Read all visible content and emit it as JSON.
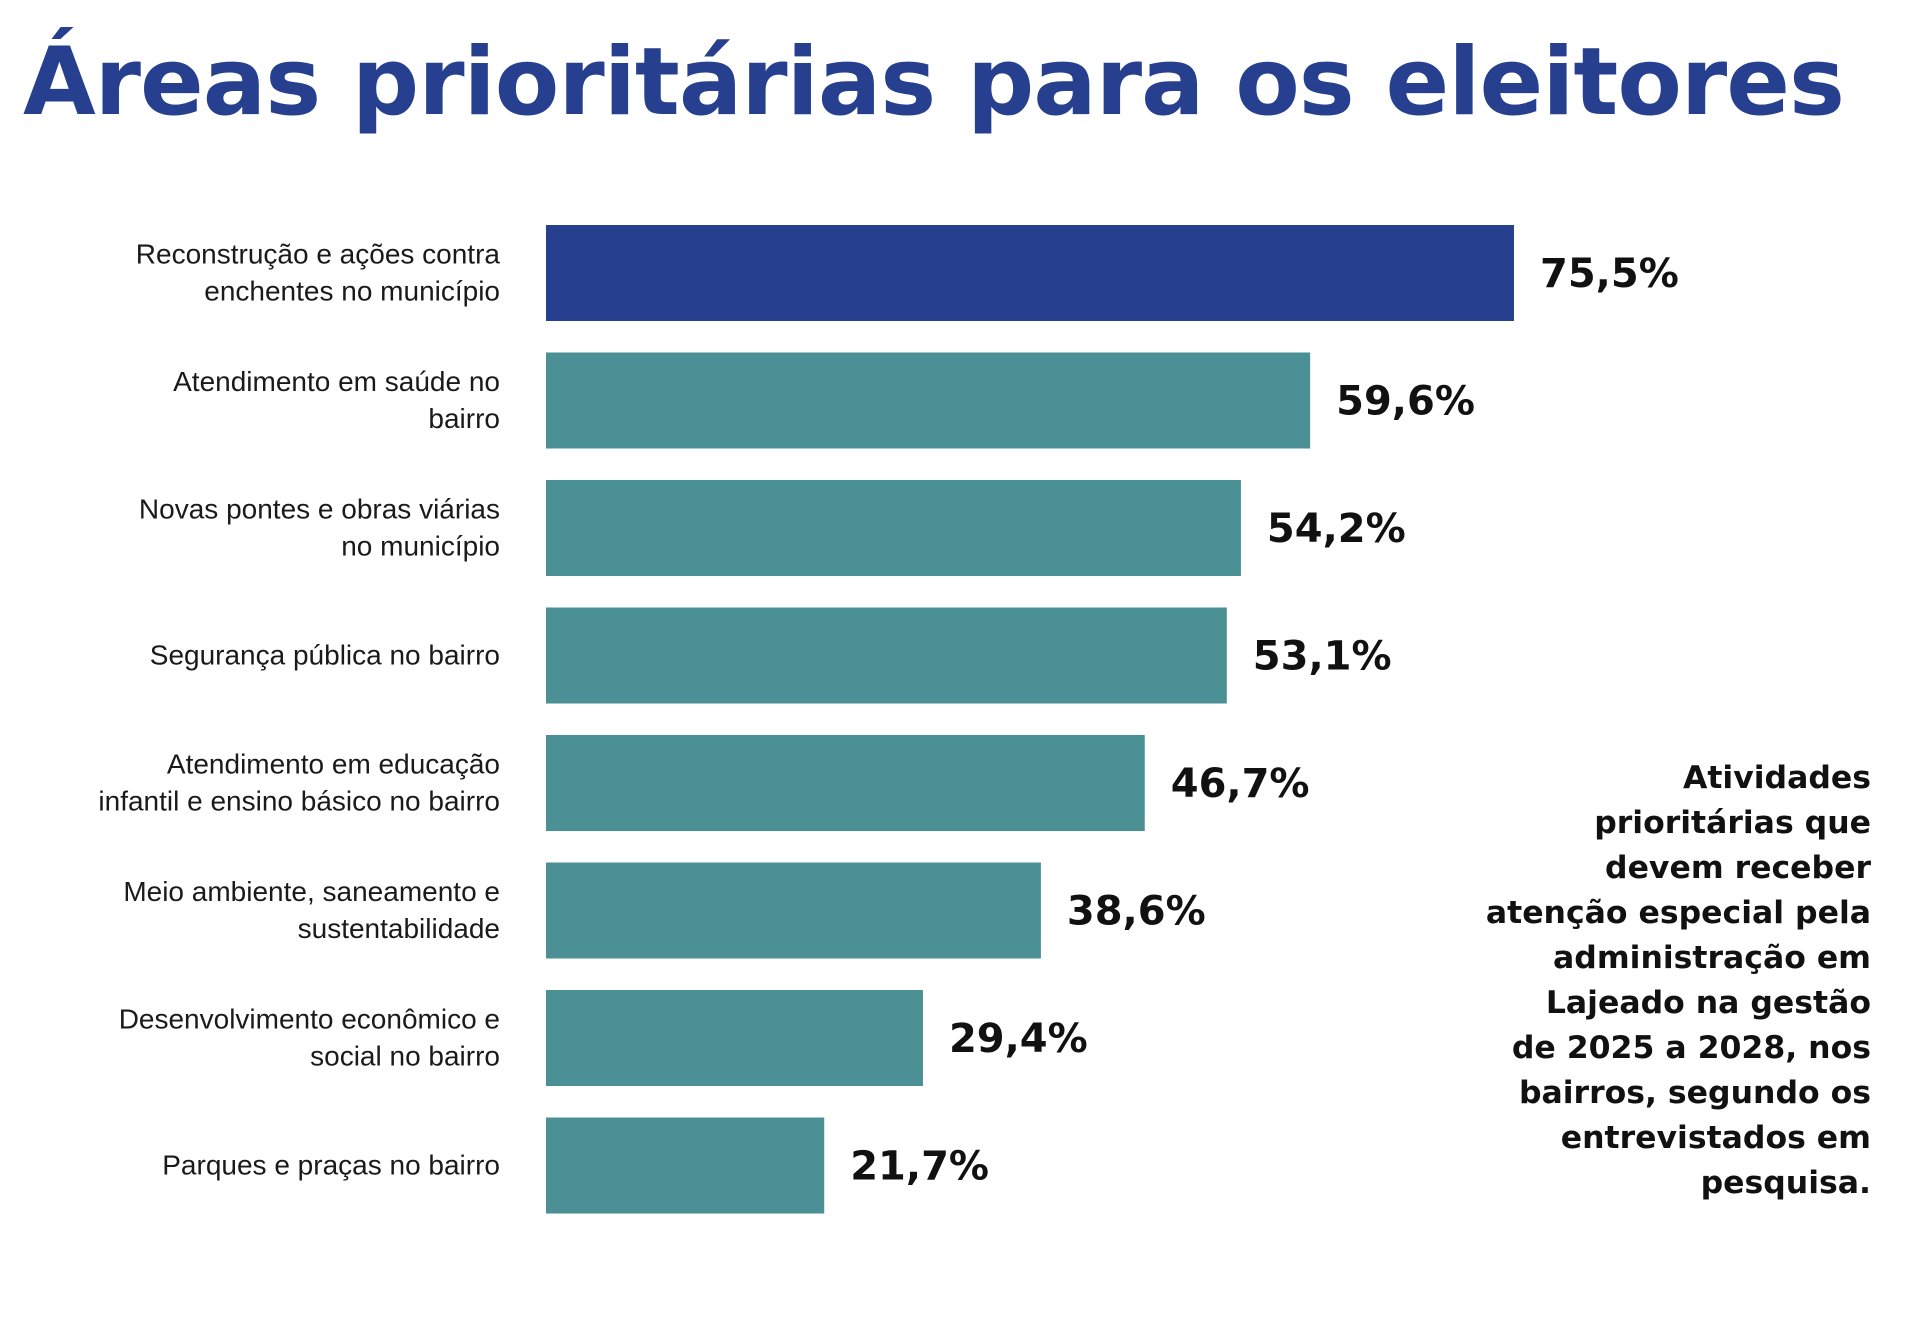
{
  "chart_data": {
    "type": "bar",
    "orientation": "horizontal",
    "title": "Áreas prioritárias para os eleitores",
    "categories": [
      [
        "Reconstrução e ações contra",
        "enchentes no município"
      ],
      [
        "Atendimento em saúde no",
        "bairro"
      ],
      [
        "Novas pontes e obras viárias",
        "no município"
      ],
      [
        "Segurança pública no bairro"
      ],
      [
        "Atendimento em educação",
        "infantil e ensino básico no bairro"
      ],
      [
        "Meio ambiente, saneamento e",
        "sustentabilidade"
      ],
      [
        "Desenvolvimento econômico e",
        "social no bairro"
      ],
      [
        "Parques e praças no bairro"
      ]
    ],
    "values": [
      75.5,
      59.6,
      54.2,
      53.1,
      46.7,
      38.6,
      29.4,
      21.7
    ],
    "value_labels": [
      "75,5%",
      "59,6%",
      "54,2%",
      "53,1%",
      "46,7%",
      "38,6%",
      "29,4%",
      "21,7%"
    ],
    "highlight_index": 0,
    "colors": {
      "highlight": "#26408f",
      "bar": "#4a9094",
      "title": "#26408f",
      "text": "#111111"
    },
    "xlim": [
      0,
      75.5
    ],
    "grid": false,
    "legend": "none"
  },
  "note": {
    "lines": [
      "Atividades",
      "prioritárias que",
      "devem receber",
      "atenção especial pela",
      "administração em",
      "Lajeado na gestão",
      "de 2025 a 2028, nos",
      "bairros, segundo os",
      "entrevistados em",
      "pesquisa."
    ]
  }
}
